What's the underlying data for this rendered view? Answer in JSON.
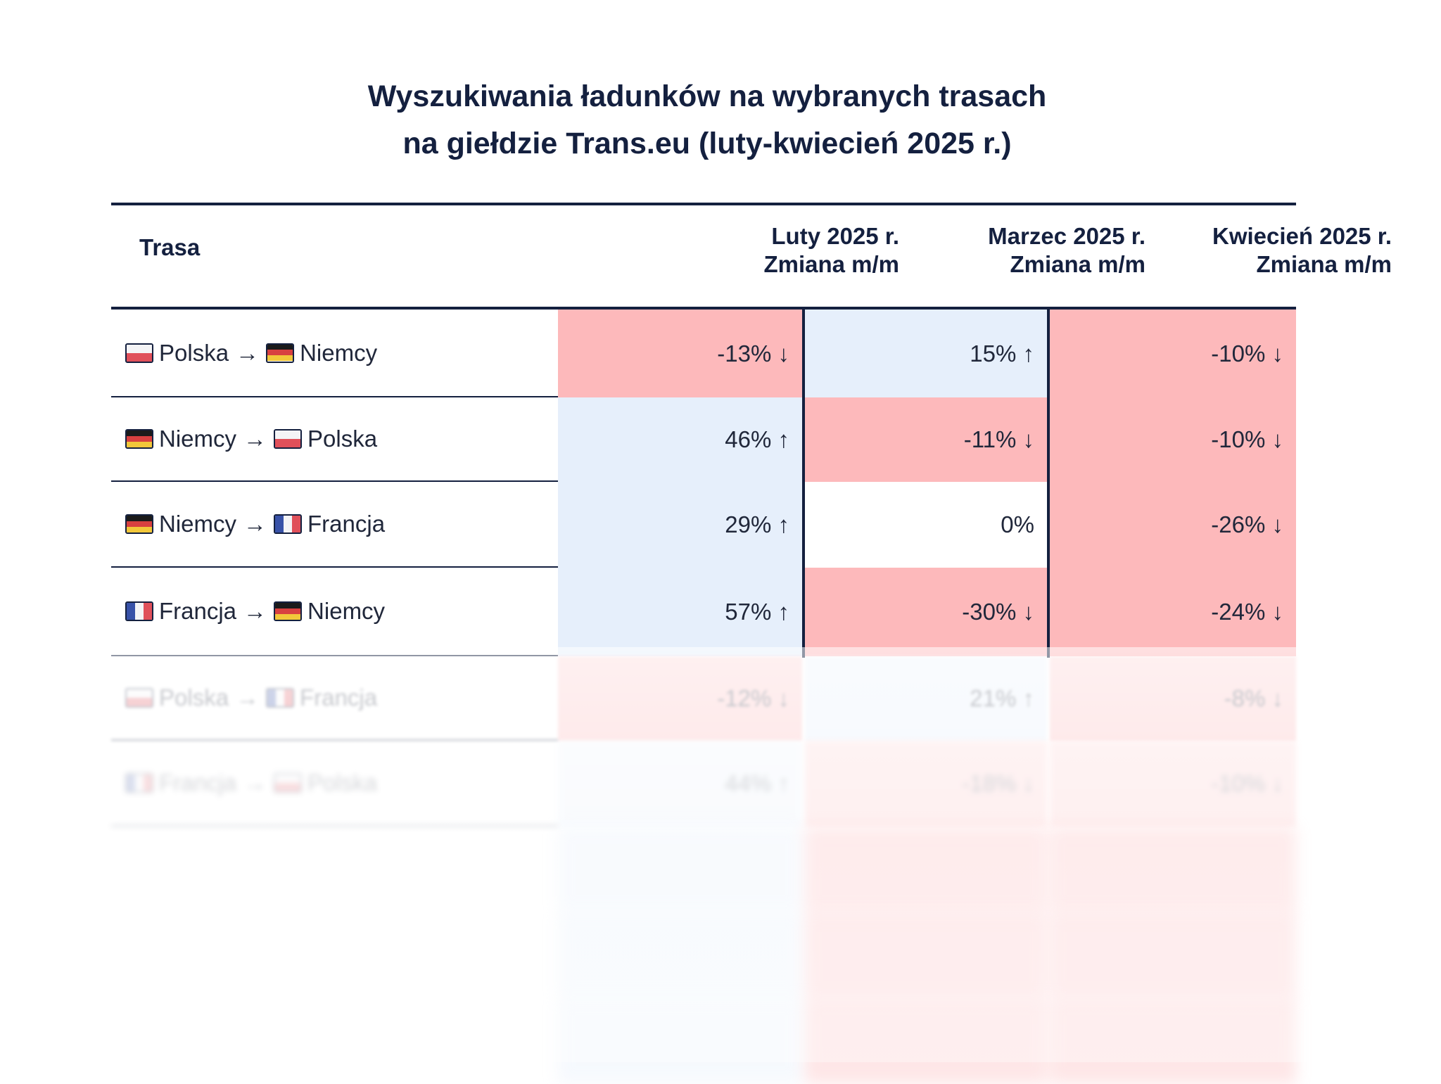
{
  "title": {
    "line1": "Wyszukiwania ładunków na wybranych trasach",
    "line2": "na giełdzie Trans.eu (luty-kwiecień 2025 r.)"
  },
  "header": {
    "route": "Trasa",
    "feb_line1": "Luty 2025 r.",
    "feb_line2": "Zmiana m/m",
    "mar_line1": "Marzec 2025 r.",
    "mar_line2": "Zmiana m/m",
    "apr_line1": "Kwiecień 2025 r.",
    "apr_line2": "Zmiana m/m"
  },
  "arrow": "→",
  "rows": [
    {
      "from": "Polska",
      "from_flag": "poland-flag-icon",
      "to": "Niemcy",
      "to_flag": "germany-flag-icon",
      "feb": "-13% ↓",
      "mar": "15% ↑",
      "apr": "-10% ↓"
    },
    {
      "from": "Niemcy",
      "from_flag": "germany-flag-icon",
      "to": "Polska",
      "to_flag": "poland-flag-icon",
      "feb": "46% ↑",
      "mar": "-11% ↓",
      "apr": "-10% ↓"
    },
    {
      "from": "Niemcy",
      "from_flag": "germany-flag-icon",
      "to": "Francja",
      "to_flag": "france-flag-icon",
      "feb": "29% ↑",
      "mar": "0%",
      "apr": "-26% ↓"
    },
    {
      "from": "Francja",
      "from_flag": "france-flag-icon",
      "to": "Niemcy",
      "to_flag": "germany-flag-icon",
      "feb": "57% ↑",
      "mar": "-30% ↓",
      "apr": "-24% ↓"
    },
    {
      "from": "Polska",
      "from_flag": "poland-flag-icon",
      "to": "Francja",
      "to_flag": "france-flag-icon",
      "feb": "-12% ↓",
      "mar": "21% ↑",
      "apr": "-8% ↓"
    },
    {
      "from": "Francja",
      "from_flag": "france-flag-icon",
      "to": "Polska",
      "to_flag": "poland-flag-icon",
      "feb": "44% ↑",
      "mar": "-18% ↓",
      "apr": "-10% ↓"
    }
  ],
  "colors": {
    "increase": "#e6effb",
    "decrease": "#fdb9bb",
    "neutral": "#ffffff",
    "rule": "#14203f"
  }
}
